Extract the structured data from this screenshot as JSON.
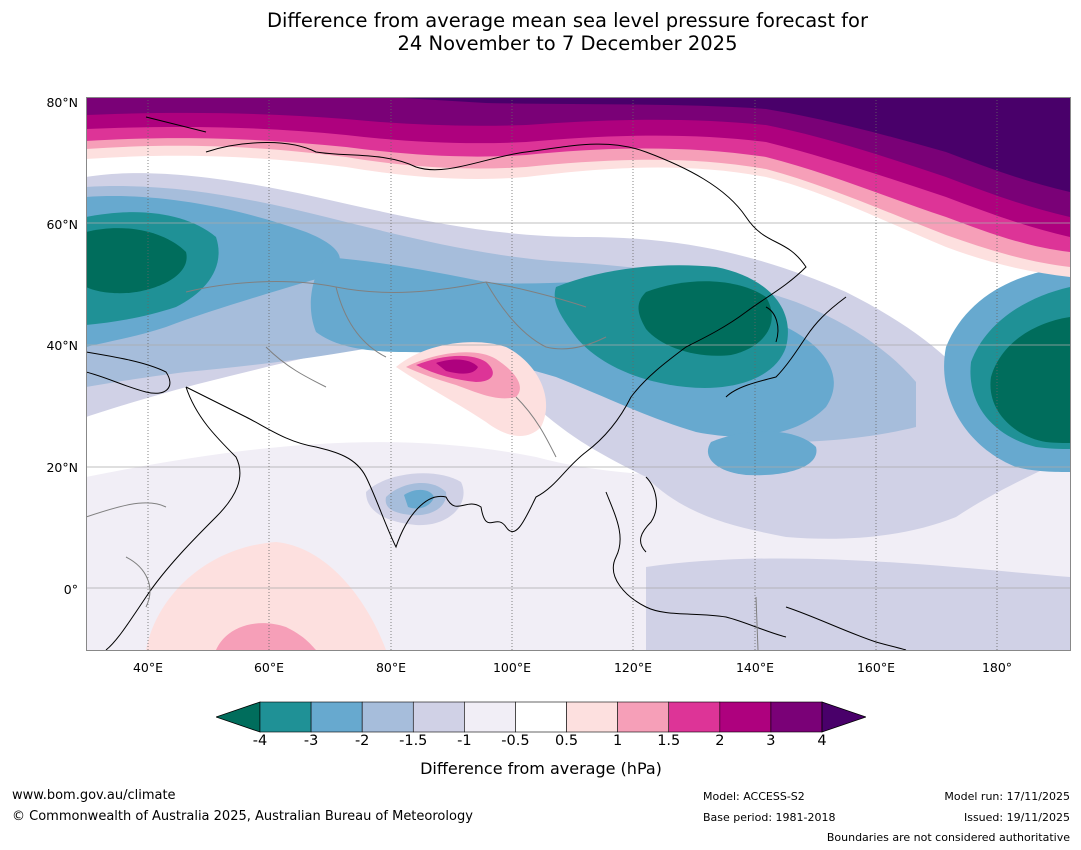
{
  "title": {
    "line1": "Difference from average mean sea level pressure forecast for",
    "line2": "24 November to 7 December 2025"
  },
  "map": {
    "lat_labels": [
      "80°N",
      "60°N",
      "40°N",
      "20°N",
      "0°"
    ],
    "lon_labels": [
      "40°E",
      "60°E",
      "80°E",
      "100°E",
      "120°E",
      "140°E",
      "160°E",
      "180°"
    ]
  },
  "colorbar": {
    "ticks": [
      "-4",
      "-3",
      "-2",
      "-1.5",
      "-1",
      "-0.5",
      "0.5",
      "1",
      "1.5",
      "2",
      "3",
      "4"
    ],
    "colors": [
      "#006d5c",
      "#1f9196",
      "#67a9cf",
      "#a6bddb",
      "#d0d1e6",
      "#f1eef6",
      "#ffffff",
      "#fde0df",
      "#f69fb8",
      "#dd3497",
      "#ae017e",
      "#7a0177",
      "#49006a"
    ],
    "label": "Difference from average (hPa)"
  },
  "footer": {
    "website": "www.bom.gov.au/climate",
    "copyright": "© Commonwealth of Australia 2025, Australian Bureau of Meteorology",
    "model": "Model: ACCESS-S2",
    "base_period": "Base period: 1981-2018",
    "model_run": "Model run: 17/11/2025",
    "issued": "Issued: 19/11/2025",
    "boundaries_note": "Boundaries are not considered authoritative"
  }
}
